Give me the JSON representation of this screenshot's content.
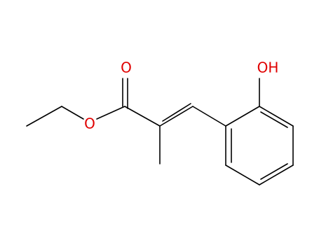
{
  "atoms": {
    "carbonyl_oxygen": "O",
    "ester_oxygen": "O",
    "hydroxyl": "OH"
  }
}
